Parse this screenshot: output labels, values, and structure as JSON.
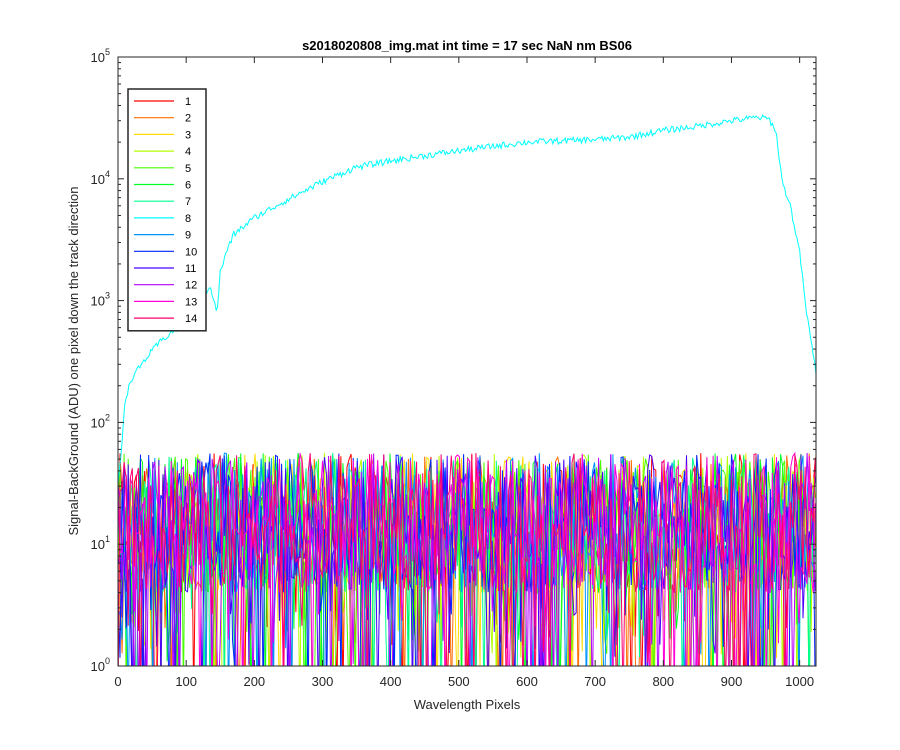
{
  "chart_data": {
    "type": "line",
    "title": "s2018020808_img.mat int time = 17 sec  NaN nm BS06",
    "xlabel": "Wavelength Pixels",
    "ylabel": "Signal-BackGround (ADU) one pixel down the track direction",
    "xlim": [
      0,
      1024
    ],
    "ylim": [
      1,
      100000
    ],
    "yscale": "log",
    "x_ticks": [
      0,
      100,
      200,
      300,
      400,
      500,
      600,
      700,
      800,
      900,
      1000
    ],
    "y_ticks": [
      {
        "value": 1,
        "base": "10",
        "exp": "0"
      },
      {
        "value": 10,
        "base": "10",
        "exp": "1"
      },
      {
        "value": 100,
        "base": "10",
        "exp": "2"
      },
      {
        "value": 1000,
        "base": "10",
        "exp": "3"
      },
      {
        "value": 10000,
        "base": "10",
        "exp": "4"
      },
      {
        "value": 100000,
        "base": "10",
        "exp": "5"
      }
    ],
    "grid": false,
    "legend_position": "top-left",
    "series": [
      {
        "name": "1",
        "color": "#ff0000",
        "kind": "noise"
      },
      {
        "name": "2",
        "color": "#ff6e00",
        "kind": "noise"
      },
      {
        "name": "3",
        "color": "#ffdb00",
        "kind": "noise"
      },
      {
        "name": "4",
        "color": "#b6ff00",
        "kind": "noise"
      },
      {
        "name": "5",
        "color": "#49ff00",
        "kind": "noise"
      },
      {
        "name": "6",
        "color": "#00ff24",
        "kind": "noise"
      },
      {
        "name": "7",
        "color": "#00ff92",
        "kind": "noise"
      },
      {
        "name": "8",
        "color": "#00ffff",
        "kind": "signal",
        "profile": [
          [
            0,
            30
          ],
          [
            5,
            60
          ],
          [
            10,
            150
          ],
          [
            20,
            230
          ],
          [
            40,
            330
          ],
          [
            60,
            450
          ],
          [
            80,
            560
          ],
          [
            100,
            650
          ],
          [
            120,
            950
          ],
          [
            135,
            1350
          ],
          [
            145,
            780
          ],
          [
            150,
            1700
          ],
          [
            160,
            2600
          ],
          [
            170,
            3500
          ],
          [
            200,
            4800
          ],
          [
            250,
            6800
          ],
          [
            300,
            9500
          ],
          [
            350,
            12500
          ],
          [
            400,
            14000
          ],
          [
            450,
            15500
          ],
          [
            500,
            17000
          ],
          [
            550,
            18500
          ],
          [
            600,
            20000
          ],
          [
            650,
            20500
          ],
          [
            700,
            21000
          ],
          [
            750,
            22000
          ],
          [
            800,
            25000
          ],
          [
            850,
            27000
          ],
          [
            900,
            30000
          ],
          [
            940,
            32000
          ],
          [
            955,
            31000
          ],
          [
            965,
            25000
          ],
          [
            975,
            9000
          ],
          [
            985,
            6500
          ],
          [
            1000,
            2500
          ],
          [
            1010,
            800
          ],
          [
            1024,
            260
          ]
        ]
      },
      {
        "name": "9",
        "color": "#0092ff",
        "kind": "noise"
      },
      {
        "name": "10",
        "color": "#0024ff",
        "kind": "noise"
      },
      {
        "name": "11",
        "color": "#4900ff",
        "kind": "noise"
      },
      {
        "name": "12",
        "color": "#b600ff",
        "kind": "noise"
      },
      {
        "name": "13",
        "color": "#ff00db",
        "kind": "noise"
      },
      {
        "name": "14",
        "color": "#ff006e",
        "kind": "noise"
      }
    ]
  }
}
